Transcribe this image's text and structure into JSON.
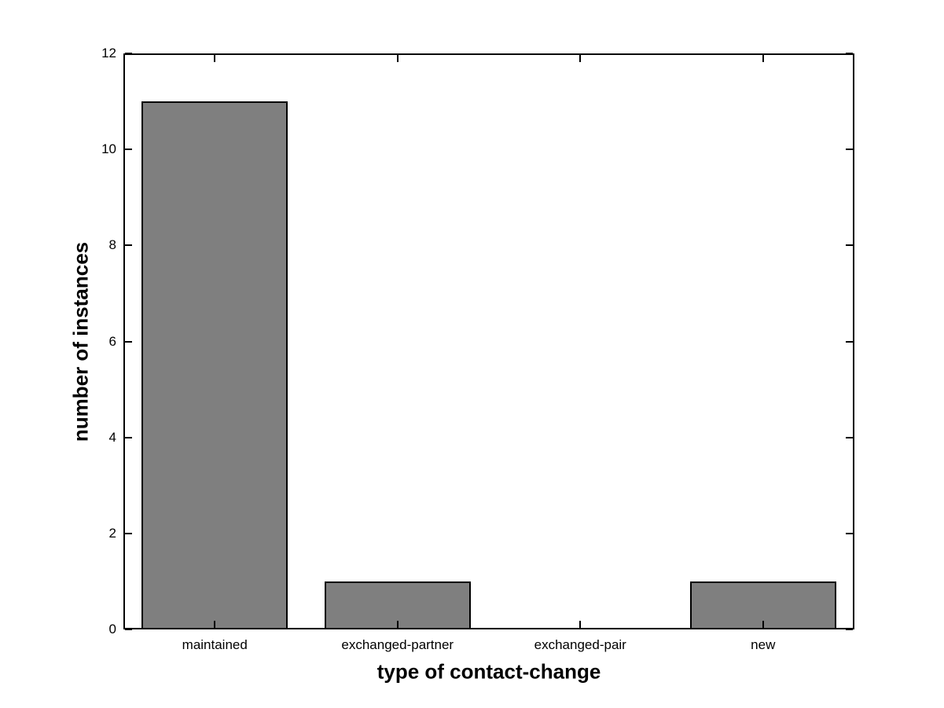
{
  "figure": {
    "background_color": "#FFFFFF"
  },
  "chart_data": {
    "type": "bar",
    "title": "",
    "categories": [
      "maintained",
      "exchanged-partner",
      "exchanged-pair",
      "new"
    ],
    "values": [
      11,
      1,
      0,
      1
    ],
    "xlabel": "type of contact-change",
    "ylabel": "number of instances",
    "yticks": [
      0,
      2,
      4,
      6,
      8,
      10,
      12
    ],
    "ylim": [
      0,
      12
    ],
    "bar_color": "#7F7F7F",
    "bar_edge_color": "#000000",
    "axis_color": "#000000",
    "grid": false,
    "legend": null,
    "bar_width_fraction": 0.8,
    "tick_direction": "in",
    "box": true
  }
}
